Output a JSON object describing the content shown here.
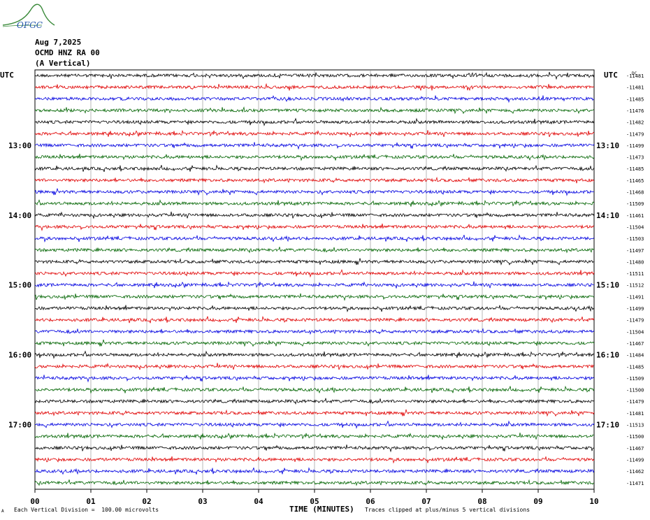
{
  "logo": {
    "text": "OFGC",
    "color": "#3a8a3a",
    "text_color": "#2255aa"
  },
  "header": {
    "date": "Aug 7,2025",
    "station": "OCMD HNZ RA 00",
    "component": "(A Vertical)"
  },
  "left_tz": "UTC",
  "right_tz": "UTC",
  "dc_label": "DC",
  "x_axis_title": "TIME (MINUTES)",
  "footer_left_mark": "A",
  "footer_scale": "Each Vertical Division =  100.00 microvolts",
  "footer_clip": "Traces clipped at plus/minus 5 vertical divisions",
  "colors": {
    "black": "#000000",
    "red": "#e00000",
    "blue": "#0000e0",
    "green": "#006400",
    "grid": "#888888"
  },
  "chart_data": {
    "type": "line",
    "subtype": "helicorder",
    "x_ticks": [
      "00",
      "01",
      "02",
      "03",
      "04",
      "05",
      "06",
      "07",
      "08",
      "09",
      "10"
    ],
    "xlim": [
      0,
      10
    ],
    "trace_colors_cycle": [
      "black",
      "red",
      "blue",
      "green"
    ],
    "left_time_labels": [
      {
        "row": 6,
        "label": "13:00"
      },
      {
        "row": 12,
        "label": "14:00"
      },
      {
        "row": 18,
        "label": "15:00"
      },
      {
        "row": 24,
        "label": "16:00"
      },
      {
        "row": 30,
        "label": "17:00"
      }
    ],
    "right_time_labels": [
      {
        "row": 6,
        "label": "13:10"
      },
      {
        "row": 12,
        "label": "14:10"
      },
      {
        "row": 18,
        "label": "15:10"
      },
      {
        "row": 24,
        "label": "16:10"
      },
      {
        "row": 30,
        "label": "17:10"
      }
    ],
    "dc_offsets": [
      "-11481",
      "-11481",
      "-11485",
      "-11476",
      "-11482",
      "-11479",
      "-11499",
      "-11473",
      "-11485",
      "-11465",
      "-11468",
      "-11509",
      "-11461",
      "-11504",
      "-11503",
      "-11497",
      "-11480",
      "-11511",
      "-11512",
      "-11491",
      "-11499",
      "-11479",
      "-11504",
      "-11467",
      "-11484",
      "-11485",
      "-11509",
      "-11500",
      "-11479",
      "-11481",
      "-11513",
      "-11500",
      "-11467",
      "-11499",
      "-11462",
      "-11471"
    ]
  }
}
